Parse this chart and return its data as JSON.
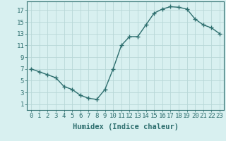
{
  "x": [
    0,
    1,
    2,
    3,
    4,
    5,
    6,
    7,
    8,
    9,
    10,
    11,
    12,
    13,
    14,
    15,
    16,
    17,
    18,
    19,
    20,
    21,
    22,
    23
  ],
  "y": [
    7.0,
    6.5,
    6.0,
    5.5,
    4.0,
    3.5,
    2.5,
    2.0,
    1.8,
    3.5,
    7.0,
    11.0,
    12.5,
    12.5,
    14.5,
    16.5,
    17.2,
    17.6,
    17.5,
    17.2,
    15.5,
    14.5,
    14.0,
    13.0
  ],
  "line_color": "#2d6e6e",
  "marker": "+",
  "marker_size": 4,
  "xlabel": "Humidex (Indice chaleur)",
  "bg_color": "#d8f0f0",
  "grid_color": "#b8d8d8",
  "xlim": [
    -0.5,
    23.5
  ],
  "ylim": [
    0,
    18.5
  ],
  "xticks": [
    0,
    1,
    2,
    3,
    4,
    5,
    6,
    7,
    8,
    9,
    10,
    11,
    12,
    13,
    14,
    15,
    16,
    17,
    18,
    19,
    20,
    21,
    22,
    23
  ],
  "yticks": [
    1,
    3,
    5,
    7,
    9,
    11,
    13,
    15,
    17
  ],
  "tick_label_fontsize": 6.5,
  "xlabel_fontsize": 7.5
}
